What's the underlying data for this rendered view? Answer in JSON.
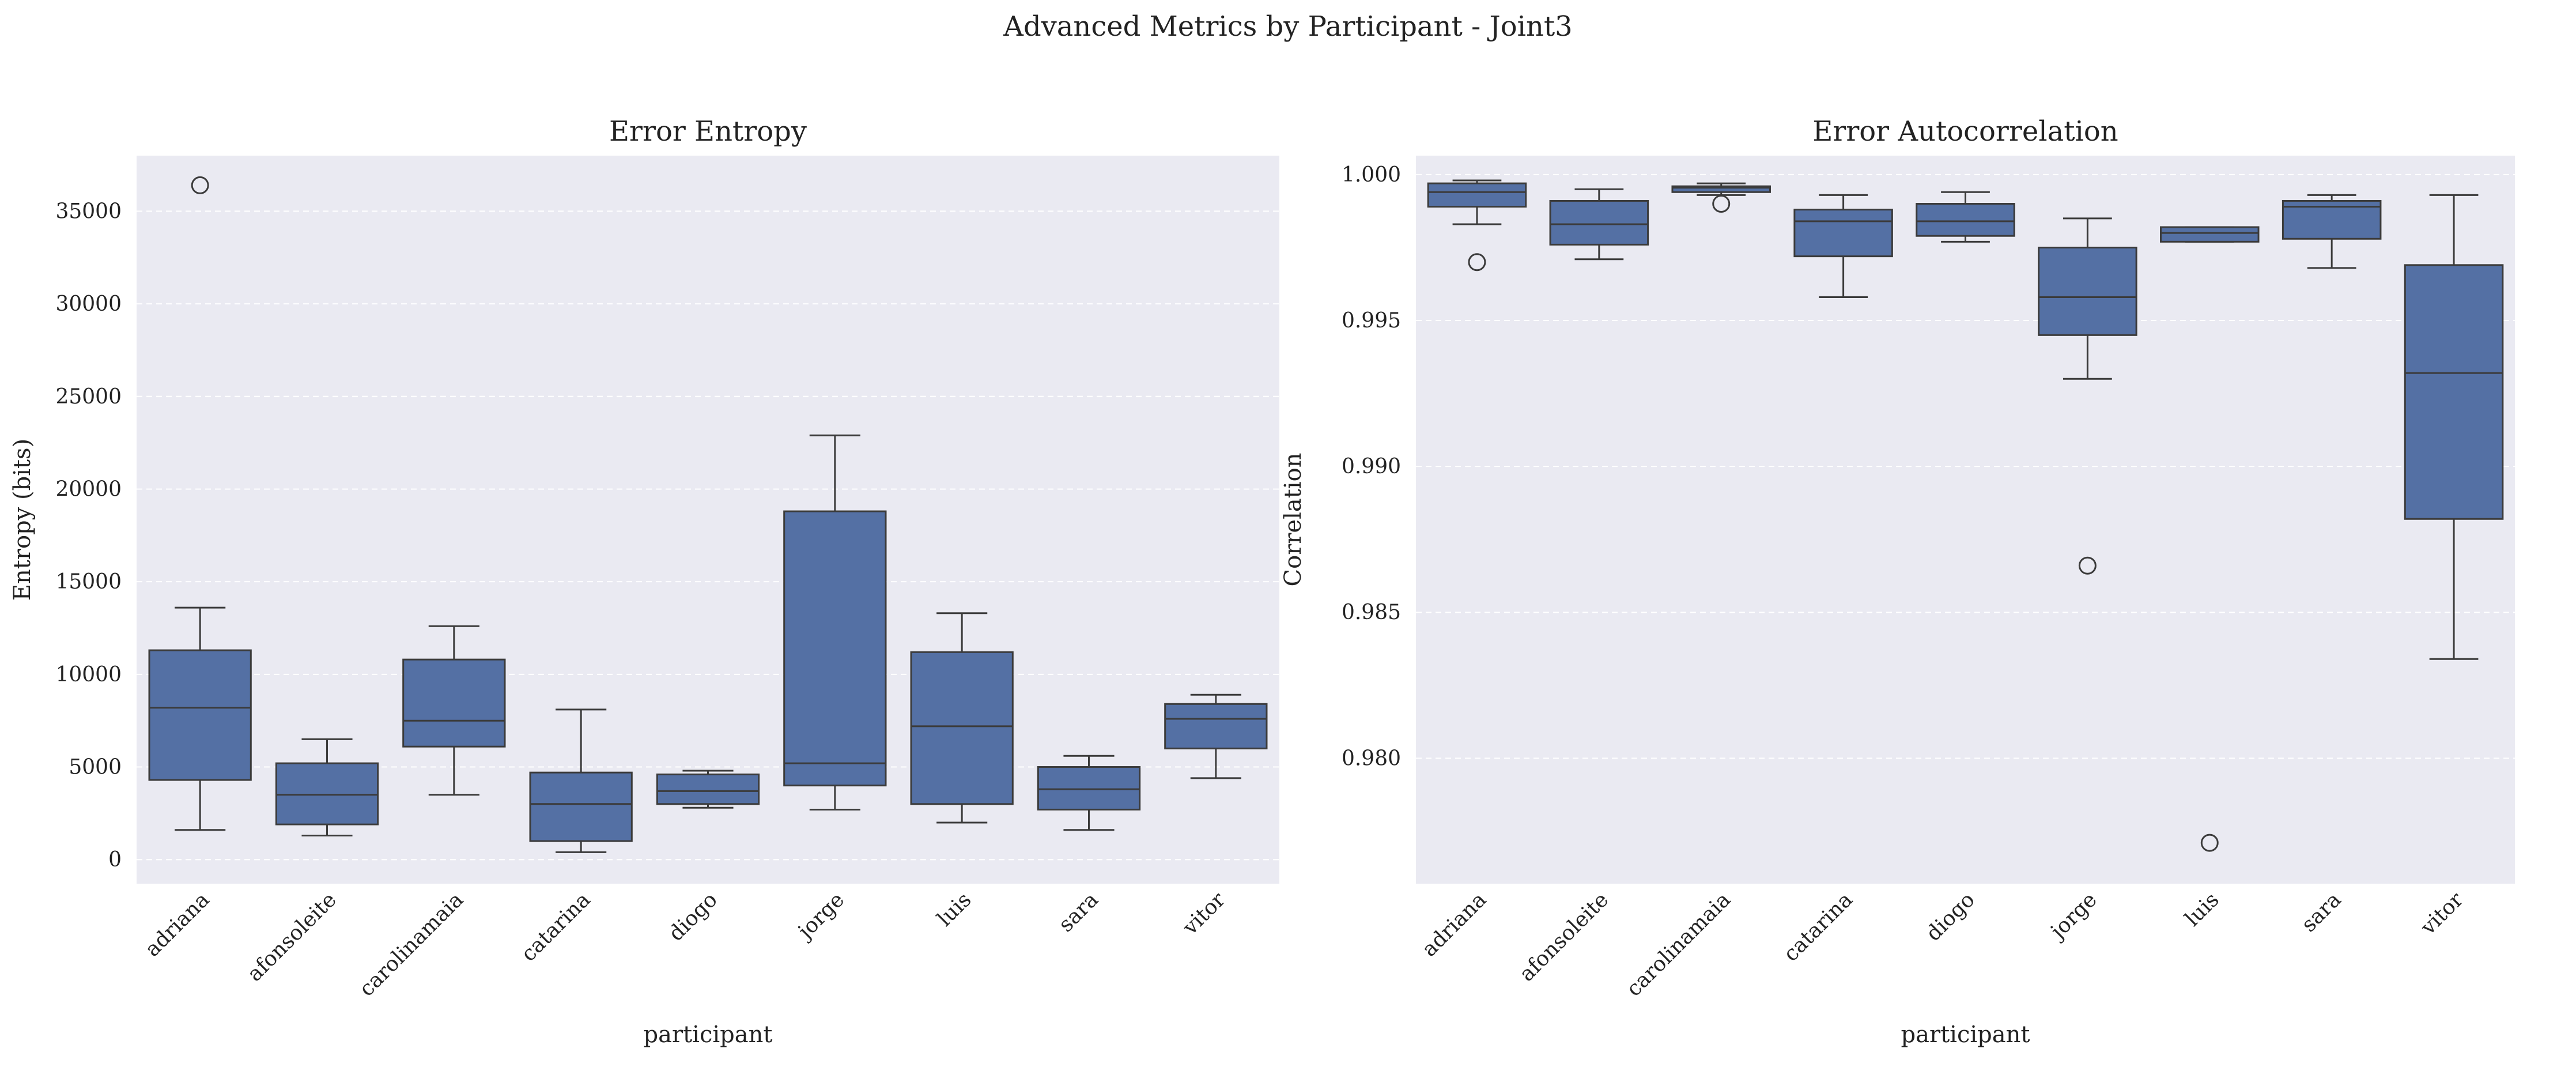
{
  "figure": {
    "title": "Advanced Metrics by Participant - Joint3"
  },
  "colors": {
    "box_fill": "#5470a4",
    "line": "#3b3b3b",
    "panel_bg": "#eaeaf2",
    "grid": "#ffffff"
  },
  "chart_data": [
    {
      "type": "box",
      "title": "Error Entropy",
      "xlabel": "participant",
      "ylabel": "Entropy (bits)",
      "ylim": [
        -1300,
        38000
      ],
      "yticks": [
        0,
        5000,
        10000,
        15000,
        20000,
        25000,
        30000,
        35000
      ],
      "ytick_labels": [
        "0",
        "5000",
        "10000",
        "15000",
        "20000",
        "25000",
        "30000",
        "35000"
      ],
      "grid": true,
      "categories": [
        "adriana",
        "afonsoleite",
        "carolinamaia",
        "catarina",
        "diogo",
        "jorge",
        "luis",
        "sara",
        "vitor"
      ],
      "boxes": [
        {
          "whislo": 1600,
          "q1": 4300,
          "med": 8200,
          "q3": 11300,
          "whishi": 13600,
          "fliers": [
            36400
          ]
        },
        {
          "whislo": 1300,
          "q1": 1900,
          "med": 3500,
          "q3": 5200,
          "whishi": 6500,
          "fliers": []
        },
        {
          "whislo": 3500,
          "q1": 6100,
          "med": 7500,
          "q3": 10800,
          "whishi": 12600,
          "fliers": []
        },
        {
          "whislo": 400,
          "q1": 1000,
          "med": 3000,
          "q3": 4700,
          "whishi": 8100,
          "fliers": []
        },
        {
          "whislo": 2800,
          "q1": 3000,
          "med": 3700,
          "q3": 4600,
          "whishi": 4800,
          "fliers": []
        },
        {
          "whislo": 2700,
          "q1": 4000,
          "med": 5200,
          "q3": 18800,
          "whishi": 22900,
          "fliers": []
        },
        {
          "whislo": 2000,
          "q1": 3000,
          "med": 7200,
          "q3": 11200,
          "whishi": 13300,
          "fliers": []
        },
        {
          "whislo": 1600,
          "q1": 2700,
          "med": 3800,
          "q3": 5000,
          "whishi": 5600,
          "fliers": []
        },
        {
          "whislo": 4400,
          "q1": 6000,
          "med": 7600,
          "q3": 8400,
          "whishi": 8900,
          "fliers": []
        }
      ]
    },
    {
      "type": "box",
      "title": "Error Autocorrelation",
      "xlabel": "participant",
      "ylabel": "Correlation",
      "ylim": [
        0.9757,
        1.00065
      ],
      "yticks": [
        0.98,
        0.985,
        0.99,
        0.995,
        1.0
      ],
      "ytick_labels": [
        "0.980",
        "0.985",
        "0.990",
        "0.995",
        "1.000"
      ],
      "grid": true,
      "categories": [
        "adriana",
        "afonsoleite",
        "carolinamaia",
        "catarina",
        "diogo",
        "jorge",
        "luis",
        "sara",
        "vitor"
      ],
      "boxes": [
        {
          "whislo": 0.9983,
          "q1": 0.9989,
          "med": 0.9994,
          "q3": 0.9997,
          "whishi": 0.9998,
          "fliers": [
            0.997
          ]
        },
        {
          "whislo": 0.9971,
          "q1": 0.9976,
          "med": 0.9983,
          "q3": 0.9991,
          "whishi": 0.9995,
          "fliers": []
        },
        {
          "whislo": 0.9993,
          "q1": 0.9994,
          "med": 0.99955,
          "q3": 0.9996,
          "whishi": 0.9997,
          "fliers": [
            0.999
          ]
        },
        {
          "whislo": 0.9958,
          "q1": 0.9972,
          "med": 0.9984,
          "q3": 0.9988,
          "whishi": 0.9993,
          "fliers": []
        },
        {
          "whislo": 0.9977,
          "q1": 0.9979,
          "med": 0.9984,
          "q3": 0.999,
          "whishi": 0.9994,
          "fliers": []
        },
        {
          "whislo": 0.993,
          "q1": 0.9945,
          "med": 0.9958,
          "q3": 0.9975,
          "whishi": 0.9985,
          "fliers": [
            0.9866
          ]
        },
        {
          "whislo": 0.9977,
          "q1": 0.9977,
          "med": 0.998,
          "q3": 0.9982,
          "whishi": 0.9982,
          "fliers": [
            0.9771
          ]
        },
        {
          "whislo": 0.9968,
          "q1": 0.9978,
          "med": 0.9989,
          "q3": 0.9991,
          "whishi": 0.9993,
          "fliers": []
        },
        {
          "whislo": 0.9834,
          "q1": 0.9882,
          "med": 0.9932,
          "q3": 0.9969,
          "whishi": 0.9993,
          "fliers": []
        }
      ]
    }
  ]
}
